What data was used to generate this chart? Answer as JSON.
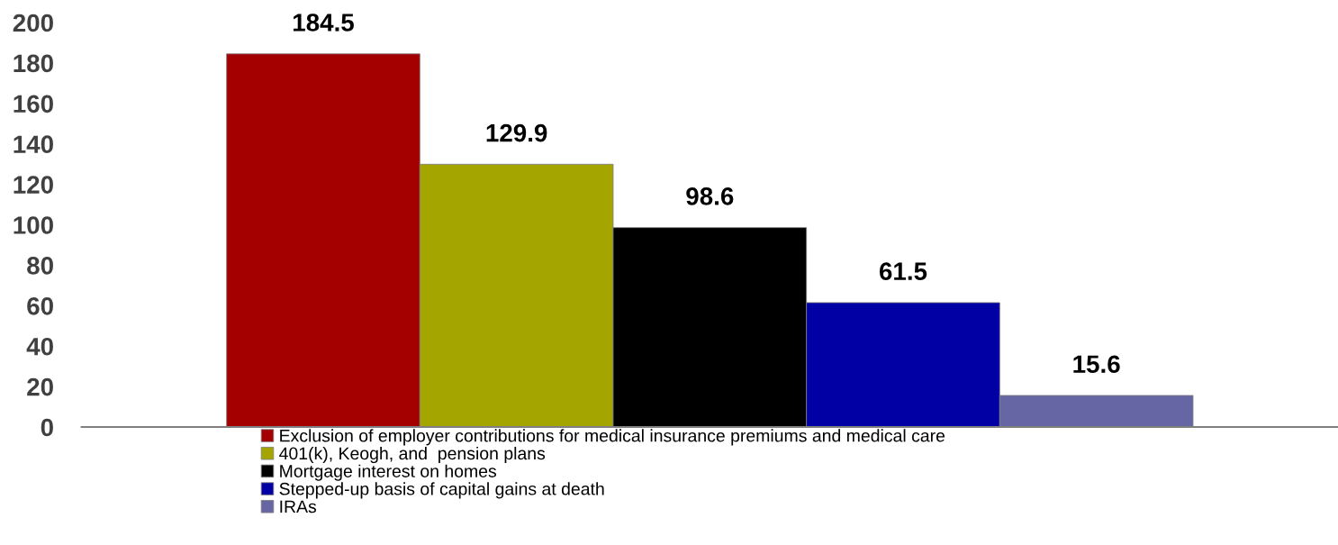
{
  "chart_data": {
    "type": "bar",
    "categories": [
      null
    ],
    "series": [
      {
        "name": "Exclusion of employer contributions for medical insurance premiums and medical care",
        "color": "#a50000",
        "values": [
          184.5
        ]
      },
      {
        "name": "401(k), Keogh, and  pension plans",
        "color": "#a5a500",
        "values": [
          129.9
        ]
      },
      {
        "name": "Mortgage interest on homes",
        "color": "#000000",
        "values": [
          98.6
        ]
      },
      {
        "name": "Stepped-up basis of capital gains at death",
        "color": "#0000a5",
        "values": [
          61.5
        ]
      },
      {
        "name": "IRAs",
        "color": "#6666a5",
        "values": [
          15.6
        ]
      }
    ],
    "ylim": [
      0,
      200
    ],
    "yticks": [
      0,
      20,
      40,
      60,
      80,
      100,
      120,
      140,
      160,
      180,
      200
    ],
    "grid": false,
    "legend": "bottom",
    "data_labels": true
  }
}
